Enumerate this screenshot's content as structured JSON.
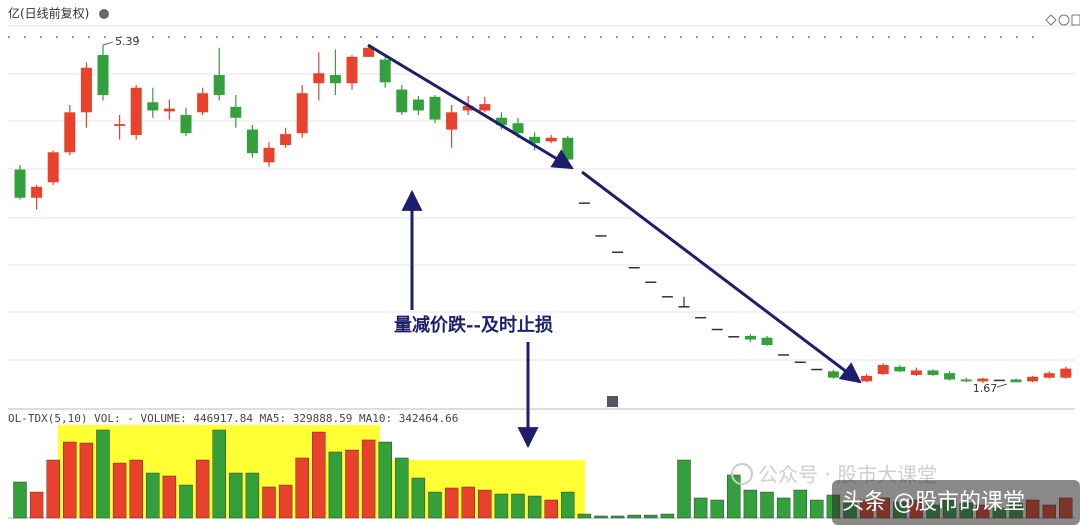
{
  "header_title": "亿(日线前复权)",
  "chart_data": {
    "type": "candlestick",
    "open": [
      4.02,
      3.71,
      3.88,
      4.21,
      4.65,
      5.28,
      4.5,
      4.4,
      4.76,
      4.66,
      4.62,
      4.65,
      5.06,
      4.71,
      4.46,
      4.1,
      4.29,
      4.42,
      4.97,
      5.06,
      4.97,
      5.26,
      5.23,
      4.9,
      4.79,
      4.82,
      4.46,
      4.67,
      4.67,
      4.59,
      4.53,
      4.38,
      4.33,
      4.37,
      3.65,
      3.29,
      3.11,
      2.94,
      2.78,
      2.62,
      2.51,
      2.39,
      2.26,
      2.18,
      2.19,
      2.17,
      1.98,
      1.9,
      1.82,
      1.8,
      1.72,
      1.69,
      1.77,
      1.85,
      1.76,
      1.81,
      1.78,
      1.71,
      1.69,
      1.7,
      1.71,
      1.69,
      1.73,
      1.73
    ],
    "high": [
      4.07,
      3.85,
      4.23,
      4.73,
      5.2,
      5.39,
      4.62,
      4.95,
      4.92,
      4.79,
      4.7,
      4.92,
      5.36,
      4.84,
      4.51,
      4.32,
      4.48,
      4.95,
      5.31,
      5.34,
      5.28,
      5.38,
      5.28,
      4.95,
      4.83,
      4.84,
      4.73,
      4.83,
      4.82,
      4.65,
      4.59,
      4.43,
      4.4,
      4.39,
      3.65,
      3.29,
      3.11,
      2.94,
      2.78,
      2.62,
      2.62,
      2.39,
      2.26,
      2.18,
      2.21,
      2.19,
      1.98,
      1.9,
      1.82,
      1.82,
      1.72,
      1.77,
      1.89,
      1.87,
      1.84,
      1.82,
      1.8,
      1.73,
      1.73,
      1.7,
      1.72,
      1.75,
      1.8,
      1.85
    ],
    "low": [
      3.69,
      3.58,
      3.85,
      4.18,
      4.48,
      4.78,
      4.35,
      4.35,
      4.59,
      4.57,
      4.39,
      4.62,
      4.78,
      4.48,
      4.15,
      4.05,
      4.26,
      4.37,
      4.78,
      4.84,
      4.9,
      5.26,
      4.92,
      4.62,
      4.62,
      4.53,
      4.26,
      4.62,
      4.65,
      4.46,
      4.37,
      4.23,
      4.31,
      4.1,
      3.65,
      3.29,
      3.11,
      2.94,
      2.78,
      2.62,
      2.51,
      2.39,
      2.26,
      2.18,
      2.12,
      2.08,
      1.98,
      1.9,
      1.82,
      1.72,
      1.72,
      1.68,
      1.76,
      1.79,
      1.75,
      1.75,
      1.7,
      1.68,
      1.67,
      1.7,
      1.68,
      1.68,
      1.72,
      1.72
    ],
    "close": [
      3.71,
      3.83,
      4.21,
      4.65,
      5.14,
      4.84,
      4.52,
      4.92,
      4.67,
      4.69,
      4.42,
      4.86,
      4.84,
      4.59,
      4.2,
      4.26,
      4.41,
      4.86,
      5.08,
      4.97,
      5.26,
      5.36,
      4.98,
      4.65,
      4.67,
      4.57,
      4.65,
      4.72,
      4.74,
      4.51,
      4.42,
      4.31,
      4.37,
      4.13,
      3.65,
      3.29,
      3.11,
      2.94,
      2.78,
      2.62,
      2.51,
      2.39,
      2.26,
      2.18,
      2.15,
      2.09,
      1.98,
      1.9,
      1.82,
      1.73,
      1.72,
      1.75,
      1.87,
      1.8,
      1.81,
      1.76,
      1.71,
      1.69,
      1.72,
      1.7,
      1.68,
      1.74,
      1.78,
      1.83
    ],
    "volume": [
      426000,
      307000,
      686000,
      899000,
      887000,
      1041000,
      650000,
      686000,
      532000,
      497000,
      390000,
      686000,
      1041000,
      532000,
      532000,
      367000,
      390000,
      710000,
      1017000,
      781000,
      804000,
      923000,
      899000,
      710000,
      473000,
      307000,
      355000,
      367000,
      331000,
      284000,
      284000,
      260000,
      213000,
      307000,
      47000,
      24000,
      24000,
      35000,
      35000,
      47000,
      686000,
      237000,
      213000,
      509000,
      331000,
      307000,
      237000,
      331000,
      213000,
      272000,
      177000,
      213000,
      237000,
      189000,
      213000,
      154000,
      213000,
      177000,
      154000,
      118000,
      177000,
      213000,
      154000,
      237000
    ],
    "ylim": [
      1.5,
      5.55
    ],
    "volume_ylim": [
      0,
      1100000
    ],
    "up_color": "#e8412c",
    "down_color": "#33a03c",
    "flat_color": "#333333",
    "high_label": 5.39,
    "low_label": 1.67,
    "annotation": "量减价跌--及时止损",
    "volume_header": "OL-TDX(5,10) VOL: -  VOLUME: 446917.84  MA5: 329888.59  MA10: 342464.66"
  },
  "watermark_faint": "公众号 · 股市大课堂",
  "watermark": "头条 @股市的课堂"
}
